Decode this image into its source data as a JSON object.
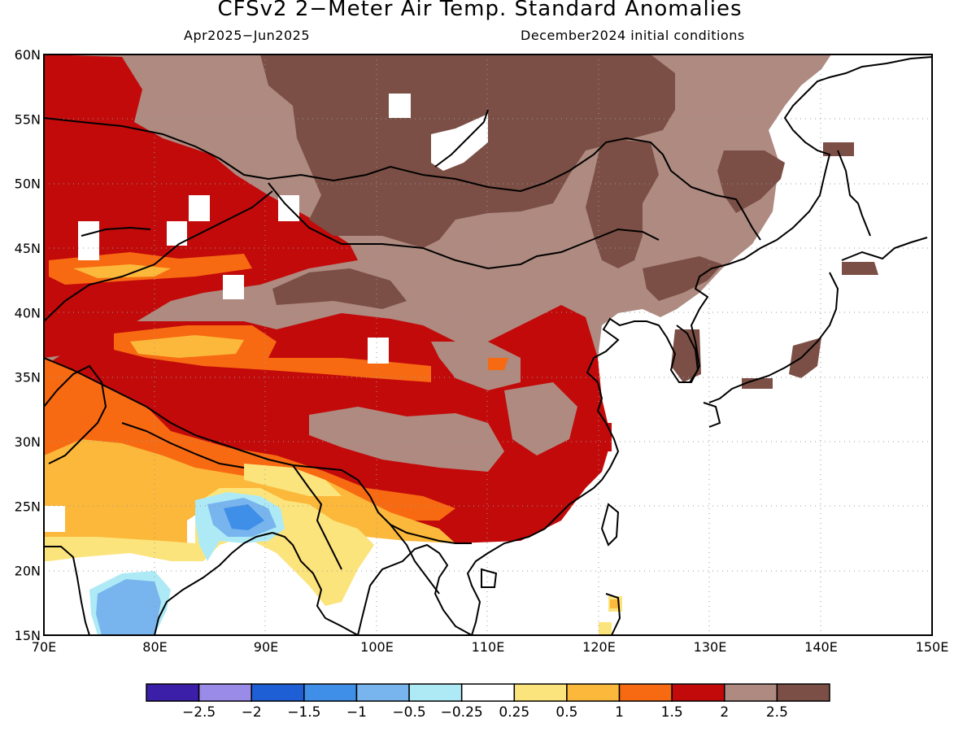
{
  "title": "CFSv2 2−Meter Air Temp. Standard Anomalies",
  "subtitle_left": "Apr2025−Jun2025",
  "subtitle_right": "December2024 initial conditions",
  "map": {
    "lon_range": [
      70,
      150
    ],
    "lat_range": [
      15,
      60
    ],
    "lon_labels": [
      "70E",
      "80E",
      "90E",
      "100E",
      "110E",
      "120E",
      "130E",
      "140E",
      "150E"
    ],
    "lat_labels": [
      "60N",
      "55N",
      "50N",
      "45N",
      "40N",
      "35N",
      "30N",
      "25N",
      "20N",
      "15N"
    ],
    "grid": "dotted, every 10° lon and 5° lat",
    "region": "East and South Asia (China, Mongolia, Korea, Japan, India, Southeast Asia)",
    "colors": {
      "c_neg25": "#3b1fa8",
      "c_neg2": "#9b8be8",
      "c_neg15": "#1f5fd6",
      "c_neg1": "#3f8ee8",
      "c_neg05": "#78b4ee",
      "c_neg025": "#aeeaf6",
      "c_neutral": "#ffffff",
      "c_025": "#fce47c",
      "c_05": "#fbb83a",
      "c_1": "#f76a12",
      "c_15": "#c20a0a",
      "c_2": "#ae8a80",
      "c_25": "#7b4f45"
    }
  },
  "colorbar": {
    "colors": [
      "#3b1fa8",
      "#9b8be8",
      "#1f5fd6",
      "#3f8ee8",
      "#78b4ee",
      "#aeeaf6",
      "#ffffff",
      "#fce47c",
      "#fbb83a",
      "#f76a12",
      "#c20a0a",
      "#ae8a80",
      "#7b4f45"
    ],
    "labels": [
      "−2.5",
      "−2",
      "−1.5",
      "−1",
      "−0.5",
      "−0.25",
      "0.25",
      "0.5",
      "1",
      "1.5",
      "2",
      "2.5"
    ]
  }
}
